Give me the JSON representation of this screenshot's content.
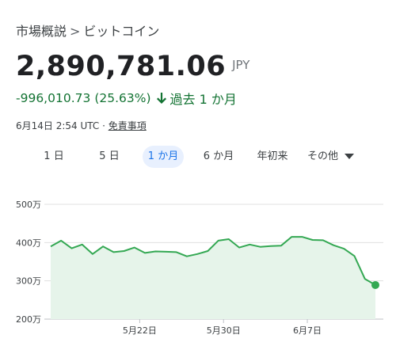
{
  "breadcrumb": {
    "parent": "市場概説",
    "separator": ">",
    "current": "ビットコイン"
  },
  "price": {
    "value": "2,890,781.06",
    "currency": "JPY"
  },
  "change": {
    "amount": "-996,010.73",
    "percent": "(25.63%)",
    "direction": "down",
    "period": "過去 1 か月"
  },
  "timestamp": {
    "text": "6月14日 2:54 UTC ·",
    "disclaimer": "免責事項"
  },
  "tabs": [
    {
      "label": "1 日",
      "active": false
    },
    {
      "label": "5 日",
      "active": false
    },
    {
      "label": "1 か月",
      "active": true
    },
    {
      "label": "6 か月",
      "active": false
    },
    {
      "label": "年初来",
      "active": false
    },
    {
      "label": "その他",
      "active": false
    }
  ],
  "colors": {
    "line": "#34a853",
    "fill": "#e6f4ea",
    "down": "#137333",
    "active_tab": "#1a73e8"
  },
  "chart_data": {
    "type": "area",
    "y_ticks": [
      "500万",
      "400万",
      "300万",
      "200万"
    ],
    "y_tick_values": [
      5000000,
      4000000,
      3000000,
      2000000
    ],
    "ylim": [
      2000000,
      5000000
    ],
    "x_ticks": [
      "5月22日",
      "5月30日",
      "6月7日"
    ],
    "x_tick_positions": [
      8.5,
      16.5,
      24.5
    ],
    "grid": true,
    "series": [
      {
        "values": [
          3900000,
          4050000,
          3850000,
          3950000,
          3700000,
          3900000,
          3750000,
          3780000,
          3870000,
          3730000,
          3770000,
          3760000,
          3750000,
          3640000,
          3700000,
          3780000,
          4050000,
          4090000,
          3870000,
          3950000,
          3890000,
          3910000,
          3920000,
          4150000,
          4150000,
          4070000,
          4060000,
          3930000,
          3840000,
          3650000,
          3050000,
          2890781
        ]
      }
    ]
  }
}
